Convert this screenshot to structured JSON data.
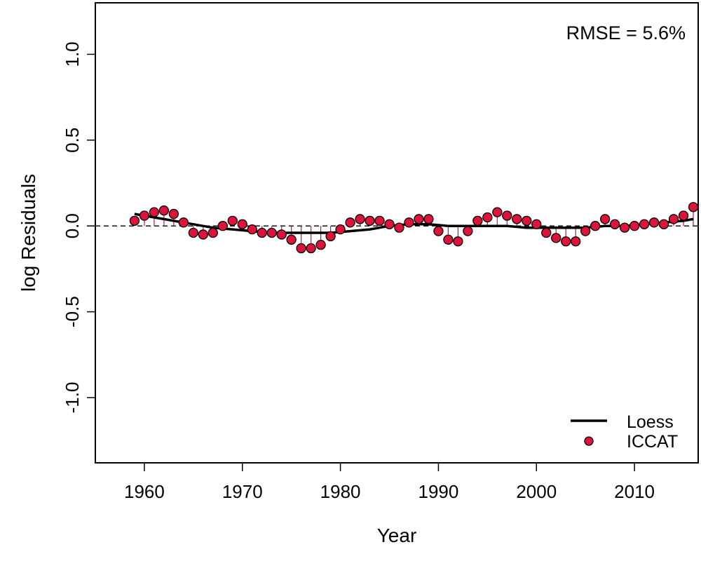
{
  "chart_data": {
    "type": "scatter",
    "xlabel": "Year",
    "ylabel": "log Residuals",
    "xlim": [
      1955,
      2016.5
    ],
    "ylim": [
      -1.38,
      1.3
    ],
    "xticks": [
      1960,
      1970,
      1980,
      1990,
      2000,
      2010
    ],
    "yticks": [
      -1.0,
      -0.5,
      0.0,
      0.5,
      1.0
    ],
    "ytick_labels": [
      "-1.0",
      "-0.5",
      "0.0",
      "0.5",
      "1.0"
    ],
    "annotation": "RMSE = 5.6%",
    "zero_line": "dashed",
    "grid": false,
    "legend_position": "bottom-right",
    "colors": {
      "points": "#dc143c",
      "stems": "#c71545",
      "loess": "#000000"
    },
    "series": [
      {
        "name": "ICCAT",
        "kind": "points",
        "x": [
          1959,
          1960,
          1961,
          1962,
          1963,
          1964,
          1965,
          1966,
          1967,
          1968,
          1969,
          1970,
          1971,
          1972,
          1973,
          1974,
          1975,
          1976,
          1977,
          1978,
          1979,
          1980,
          1981,
          1982,
          1983,
          1984,
          1985,
          1986,
          1987,
          1988,
          1989,
          1990,
          1991,
          1992,
          1993,
          1994,
          1995,
          1996,
          1997,
          1998,
          1999,
          2000,
          2001,
          2002,
          2003,
          2004,
          2005,
          2006,
          2007,
          2008,
          2009,
          2010,
          2011,
          2012,
          2013,
          2014,
          2015,
          2016
        ],
        "y": [
          0.03,
          0.06,
          0.08,
          0.09,
          0.07,
          0.02,
          -0.04,
          -0.05,
          -0.04,
          0.0,
          0.03,
          0.01,
          -0.02,
          -0.04,
          -0.04,
          -0.05,
          -0.08,
          -0.13,
          -0.13,
          -0.11,
          -0.06,
          -0.02,
          0.02,
          0.04,
          0.03,
          0.03,
          0.01,
          -0.01,
          0.02,
          0.04,
          0.04,
          -0.03,
          -0.08,
          -0.09,
          -0.03,
          0.03,
          0.05,
          0.08,
          0.06,
          0.04,
          0.03,
          0.01,
          -0.04,
          -0.07,
          -0.09,
          -0.09,
          -0.03,
          0.0,
          0.04,
          0.01,
          -0.01,
          0.0,
          0.01,
          0.02,
          0.01,
          0.04,
          0.06,
          0.11
        ]
      },
      {
        "name": "Loess",
        "kind": "line",
        "x": [
          1959,
          1961,
          1963,
          1965,
          1967,
          1969,
          1971,
          1973,
          1975,
          1977,
          1979,
          1981,
          1983,
          1985,
          1987,
          1989,
          1991,
          1993,
          1995,
          1997,
          1999,
          2001,
          2003,
          2005,
          2007,
          2009,
          2011,
          2013,
          2015,
          2016
        ],
        "y": [
          0.07,
          0.05,
          0.03,
          0.01,
          -0.01,
          -0.02,
          -0.03,
          -0.04,
          -0.04,
          -0.04,
          -0.04,
          -0.03,
          -0.02,
          0.0,
          0.01,
          0.01,
          0.0,
          0.0,
          0.0,
          0.0,
          -0.01,
          -0.01,
          -0.01,
          -0.01,
          0.0,
          0.0,
          0.01,
          0.02,
          0.03,
          0.04
        ]
      }
    ]
  }
}
